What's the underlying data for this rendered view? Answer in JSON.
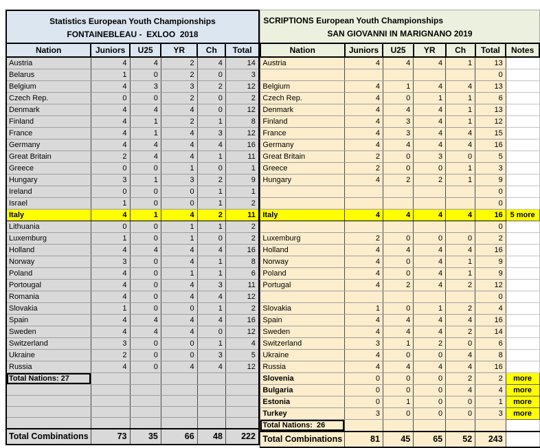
{
  "colors": {
    "header_blue": "#dce6f1",
    "header_green": "#ebf1de",
    "row_gray": "#d9d9d9",
    "row_tan": "#fcedcc",
    "highlight_yellow": "#ffff00"
  },
  "left_table": {
    "title_line1": "Statistics European Youth Championships",
    "title_line2": "FONTAINEBLEAU -  EXLOO  2018",
    "columns": [
      "Nation",
      "Juniors",
      "U25",
      "YR",
      "Ch",
      "Total"
    ],
    "rows": [
      {
        "nation": "Austria",
        "values": [
          "4",
          "4",
          "2",
          "4",
          "14"
        ],
        "style": "n"
      },
      {
        "nation": "Belarus",
        "values": [
          "1",
          "0",
          "2",
          "0",
          "3"
        ],
        "style": "n"
      },
      {
        "nation": "Belgium",
        "values": [
          "4",
          "3",
          "3",
          "2",
          "12"
        ],
        "style": "n"
      },
      {
        "nation": "Czech Rep.",
        "values": [
          "0",
          "0",
          "2",
          "0",
          "2"
        ],
        "style": "n"
      },
      {
        "nation": "Denmark",
        "values": [
          "4",
          "4",
          "4",
          "0",
          "12"
        ],
        "style": "n"
      },
      {
        "nation": "Finland",
        "values": [
          "4",
          "1",
          "2",
          "1",
          "8"
        ],
        "style": "n"
      },
      {
        "nation": "France",
        "values": [
          "4",
          "1",
          "4",
          "3",
          "12"
        ],
        "style": "n"
      },
      {
        "nation": "Germany",
        "values": [
          "4",
          "4",
          "4",
          "4",
          "16"
        ],
        "style": "n"
      },
      {
        "nation": "Great Britain",
        "values": [
          "2",
          "4",
          "4",
          "1",
          "11"
        ],
        "style": "n"
      },
      {
        "nation": "Greece",
        "values": [
          "0",
          "0",
          "1",
          "0",
          "1"
        ],
        "style": "n"
      },
      {
        "nation": "Hungary",
        "values": [
          "3",
          "1",
          "3",
          "2",
          "9"
        ],
        "style": "n"
      },
      {
        "nation": "Ireland",
        "values": [
          "0",
          "0",
          "0",
          "1",
          "1"
        ],
        "style": "n"
      },
      {
        "nation": "Israel",
        "values": [
          "1",
          "0",
          "0",
          "1",
          "2"
        ],
        "style": "n"
      },
      {
        "nation": "Italy",
        "values": [
          "4",
          "1",
          "4",
          "2",
          "11"
        ],
        "style": "hl"
      },
      {
        "nation": "Lithuania",
        "values": [
          "0",
          "0",
          "1",
          "1",
          "2"
        ],
        "style": "n"
      },
      {
        "nation": "Luxemburg",
        "values": [
          "1",
          "0",
          "1",
          "0",
          "2"
        ],
        "style": "n"
      },
      {
        "nation": "Holland",
        "values": [
          "4",
          "4",
          "4",
          "4",
          "16"
        ],
        "style": "n"
      },
      {
        "nation": "Norway",
        "values": [
          "3",
          "0",
          "4",
          "1",
          "8"
        ],
        "style": "n"
      },
      {
        "nation": "Poland",
        "values": [
          "4",
          "0",
          "1",
          "1",
          "6"
        ],
        "style": "n"
      },
      {
        "nation": "Portougal",
        "values": [
          "4",
          "0",
          "4",
          "3",
          "11"
        ],
        "style": "n"
      },
      {
        "nation": "Romania",
        "values": [
          "4",
          "0",
          "4",
          "4",
          "12"
        ],
        "style": "n"
      },
      {
        "nation": "Slovakia",
        "values": [
          "1",
          "0",
          "0",
          "1",
          "2"
        ],
        "style": "n"
      },
      {
        "nation": "Spain",
        "values": [
          "4",
          "4",
          "4",
          "4",
          "16"
        ],
        "style": "n"
      },
      {
        "nation": "Sweden",
        "values": [
          "4",
          "4",
          "4",
          "0",
          "12"
        ],
        "style": "n"
      },
      {
        "nation": "Switzerland",
        "values": [
          "3",
          "0",
          "0",
          "1",
          "4"
        ],
        "style": "n"
      },
      {
        "nation": "Ukraine",
        "values": [
          "2",
          "0",
          "0",
          "3",
          "5"
        ],
        "style": "n"
      },
      {
        "nation": "Russia",
        "values": [
          "4",
          "0",
          "4",
          "4",
          "12"
        ],
        "style": "n"
      },
      {
        "nation": "Total Nations: 27",
        "values": [
          "",
          "",
          "",
          "",
          ""
        ],
        "style": "tn"
      },
      {
        "nation": "",
        "values": [
          "",
          "",
          "",
          "",
          ""
        ],
        "style": "n"
      },
      {
        "nation": "",
        "values": [
          "",
          "",
          "",
          "",
          ""
        ],
        "style": "n"
      },
      {
        "nation": "",
        "values": [
          "",
          "",
          "",
          "",
          ""
        ],
        "style": "n"
      },
      {
        "nation": "",
        "values": [
          "",
          "",
          "",
          "",
          ""
        ],
        "style": "n"
      }
    ],
    "total_label": "Total Combinations",
    "totals": [
      "73",
      "35",
      "66",
      "48",
      "222"
    ]
  },
  "right_table": {
    "title_line1": "SCRIPTIONS European Youth Championships",
    "title_line2": "SAN GIOVANNI IN MARIGNANO 2019",
    "columns": [
      "Nation",
      "Juniors",
      "U25",
      "YR",
      "Ch",
      "Total",
      "Notes"
    ],
    "rows": [
      {
        "nation": "Austria",
        "values": [
          "4",
          "4",
          "4",
          "1",
          "13"
        ],
        "style": "n",
        "note": "",
        "note_style": "p"
      },
      {
        "nation": "",
        "values": [
          "",
          "",
          "",
          "",
          "0"
        ],
        "style": "n",
        "note": "",
        "note_style": "p"
      },
      {
        "nation": "Belgium",
        "values": [
          "4",
          "1",
          "4",
          "4",
          "13"
        ],
        "style": "n",
        "note": "",
        "note_style": "p"
      },
      {
        "nation": "Czech Rep.",
        "values": [
          "4",
          "0",
          "1",
          "1",
          "6"
        ],
        "style": "n",
        "note": "",
        "note_style": "p"
      },
      {
        "nation": "Denmark",
        "values": [
          "4",
          "4",
          "4",
          "1",
          "13"
        ],
        "style": "n",
        "note": "",
        "note_style": "p"
      },
      {
        "nation": "Finland",
        "values": [
          "4",
          "3",
          "4",
          "1",
          "12"
        ],
        "style": "n",
        "note": "",
        "note_style": "p"
      },
      {
        "nation": "France",
        "values": [
          "4",
          "3",
          "4",
          "4",
          "15"
        ],
        "style": "n",
        "note": "",
        "note_style": "p"
      },
      {
        "nation": "Germany",
        "values": [
          "4",
          "4",
          "4",
          "4",
          "16"
        ],
        "style": "n",
        "note": "",
        "note_style": "p"
      },
      {
        "nation": "Great Britain",
        "values": [
          "2",
          "0",
          "3",
          "0",
          "5"
        ],
        "style": "n",
        "note": "",
        "note_style": "p"
      },
      {
        "nation": "Greece",
        "values": [
          "2",
          "0",
          "0",
          "1",
          "3"
        ],
        "style": "n",
        "note": "",
        "note_style": "p"
      },
      {
        "nation": "Hungary",
        "values": [
          "4",
          "2",
          "2",
          "1",
          "9"
        ],
        "style": "n",
        "note": "",
        "note_style": "p"
      },
      {
        "nation": "",
        "values": [
          "",
          "",
          "",
          "",
          "0"
        ],
        "style": "n",
        "note": "",
        "note_style": "p"
      },
      {
        "nation": "",
        "values": [
          "",
          "",
          "",
          "",
          "0"
        ],
        "style": "n",
        "note": "",
        "note_style": "p"
      },
      {
        "nation": "Italy",
        "values": [
          "4",
          "4",
          "4",
          "4",
          "16"
        ],
        "style": "hl",
        "note": "5 more",
        "note_style": "y"
      },
      {
        "nation": "",
        "values": [
          "",
          "",
          "",
          "",
          "0"
        ],
        "style": "n",
        "note": "",
        "note_style": "p"
      },
      {
        "nation": "Luxemburg",
        "values": [
          "2",
          "0",
          "0",
          "0",
          "2"
        ],
        "style": "n",
        "note": "",
        "note_style": "p"
      },
      {
        "nation": "Holland",
        "values": [
          "4",
          "4",
          "4",
          "4",
          "16"
        ],
        "style": "n",
        "note": "",
        "note_style": "p"
      },
      {
        "nation": "Norway",
        "values": [
          "4",
          "0",
          "4",
          "1",
          "9"
        ],
        "style": "n",
        "note": "",
        "note_style": "p"
      },
      {
        "nation": "Poland",
        "values": [
          "4",
          "0",
          "4",
          "1",
          "9"
        ],
        "style": "n",
        "note": "",
        "note_style": "p"
      },
      {
        "nation": "Portugal",
        "values": [
          "4",
          "2",
          "4",
          "2",
          "12"
        ],
        "style": "n",
        "note": "",
        "note_style": "p"
      },
      {
        "nation": "",
        "values": [
          "",
          "",
          "",
          "",
          "0"
        ],
        "style": "n",
        "note": "",
        "note_style": "p"
      },
      {
        "nation": "Slovakia",
        "values": [
          "1",
          "0",
          "1",
          "2",
          "4"
        ],
        "style": "n",
        "note": "",
        "note_style": "p"
      },
      {
        "nation": "Spain",
        "values": [
          "4",
          "4",
          "4",
          "4",
          "16"
        ],
        "style": "n",
        "note": "",
        "note_style": "p"
      },
      {
        "nation": "Sweden",
        "values": [
          "4",
          "4",
          "4",
          "2",
          "14"
        ],
        "style": "n",
        "note": "",
        "note_style": "p"
      },
      {
        "nation": "Switzerland",
        "values": [
          "3",
          "1",
          "2",
          "0",
          "6"
        ],
        "style": "n",
        "note": "",
        "note_style": "p"
      },
      {
        "nation": "Ukraine",
        "values": [
          "4",
          "0",
          "0",
          "4",
          "8"
        ],
        "style": "n",
        "note": "",
        "note_style": "p"
      },
      {
        "nation": "Russia",
        "values": [
          "4",
          "4",
          "4",
          "4",
          "16"
        ],
        "style": "n",
        "note": "",
        "note_style": "p"
      },
      {
        "nation": "Slovenia",
        "values": [
          "0",
          "0",
          "0",
          "2",
          "2"
        ],
        "style": "b",
        "note": "more",
        "note_style": "y"
      },
      {
        "nation": "Bulgaria",
        "values": [
          "0",
          "0",
          "0",
          "4",
          "4"
        ],
        "style": "b",
        "note": "more",
        "note_style": "y"
      },
      {
        "nation": "Estonia",
        "values": [
          "0",
          "1",
          "0",
          "0",
          "1"
        ],
        "style": "b",
        "note": "more",
        "note_style": "y"
      },
      {
        "nation": "Turkey",
        "values": [
          "3",
          "0",
          "0",
          "0",
          "3"
        ],
        "style": "b",
        "note": "more",
        "note_style": "y"
      },
      {
        "nation": "Total Nations:  26",
        "values": [
          "",
          "",
          "",
          "",
          ""
        ],
        "style": "tn",
        "note": "",
        "note_style": "p"
      }
    ],
    "total_label": "Total Combinations",
    "totals": [
      "81",
      "45",
      "65",
      "52",
      "243"
    ]
  }
}
